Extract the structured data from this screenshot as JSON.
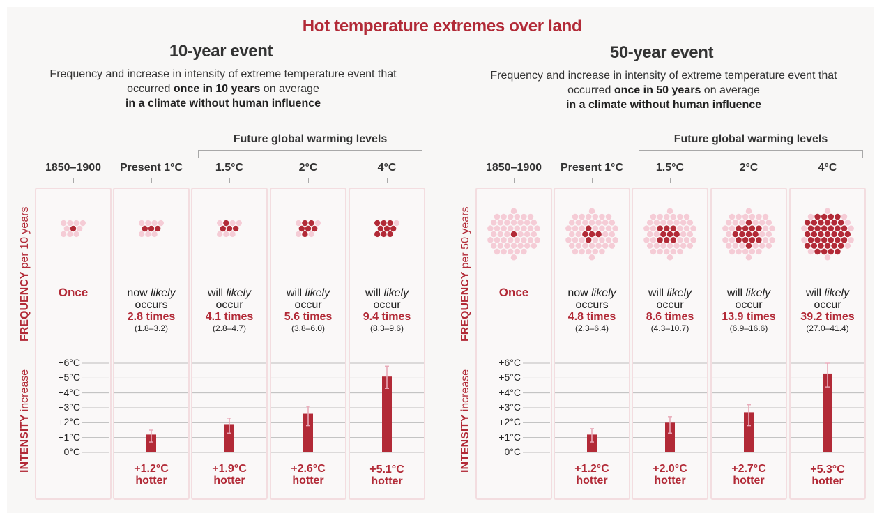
{
  "colors": {
    "accent": "#b22a37",
    "dot_light": "#f5ccd6",
    "dot_dark": "#b22a37",
    "errorbar": "#e8a9b8",
    "grid": "#bdbdbd"
  },
  "title": "Hot temperature extremes over land",
  "chart_data": [
    {
      "type": "bar",
      "title": "10-year event",
      "subtitle_parts": [
        "Frequency and increase in intensity of extreme temperature event that occurred ",
        "once in 10 years",
        " on average ",
        "in a climate without human influence"
      ],
      "group_label": "Future global warming levels",
      "categories": [
        "1850–1900",
        "Present 1°C",
        "1.5°C",
        "2°C",
        "4°C"
      ],
      "frequency_label": "FREQUENCY",
      "frequency_unit": "per 10 years",
      "frequency_total_dots": 10,
      "frequency": [
        {
          "value": 1,
          "range": null,
          "lead": "Once",
          "text_label": "Once"
        },
        {
          "value": 2.8,
          "range": [
            1.8,
            3.2
          ],
          "lead": "now",
          "verb": "occurs",
          "text_label": "2.8 times",
          "range_label": "(1.8–3.2)"
        },
        {
          "value": 4.1,
          "range": [
            2.8,
            4.7
          ],
          "lead": "will",
          "verb": "occur",
          "text_label": "4.1 times",
          "range_label": "(2.8–4.7)"
        },
        {
          "value": 5.6,
          "range": [
            3.8,
            6.0
          ],
          "lead": "will",
          "verb": "occur",
          "text_label": "5.6 times",
          "range_label": "(3.8–6.0)"
        },
        {
          "value": 9.4,
          "range": [
            8.3,
            9.6
          ],
          "lead": "will",
          "verb": "occur",
          "text_label": "9.4 times",
          "range_label": "(8.3–9.6)"
        }
      ],
      "likely_word": "likely",
      "intensity_label": "INTENSITY",
      "intensity_unit": "increase",
      "ylim": [
        0,
        6
      ],
      "yticks": [
        "0°C",
        "+1°C",
        "+2°C",
        "+3°C",
        "+4°C",
        "+5°C",
        "+6°C"
      ],
      "intensity": [
        null,
        {
          "value": 1.2,
          "low": 0.7,
          "high": 1.5,
          "label": "+1.2°C"
        },
        {
          "value": 1.9,
          "low": 1.3,
          "high": 2.3,
          "label": "+1.9°C"
        },
        {
          "value": 2.6,
          "low": 1.8,
          "high": 3.1,
          "label": "+2.6°C"
        },
        {
          "value": 5.1,
          "low": 4.3,
          "high": 5.8,
          "label": "+5.1°C"
        }
      ],
      "hotter_word": "hotter"
    },
    {
      "type": "bar",
      "title": "50-year event",
      "subtitle_parts": [
        "Frequency and increase in intensity of extreme temperature event that occurred ",
        "once in 50 years",
        " on average ",
        "in a climate without human influence"
      ],
      "group_label": "Future global warming levels",
      "categories": [
        "1850–1900",
        "Present 1°C",
        "1.5°C",
        "2°C",
        "4°C"
      ],
      "frequency_label": "FREQUENCY",
      "frequency_unit": "per 50 years",
      "frequency_total_dots": 50,
      "frequency": [
        {
          "value": 1,
          "range": null,
          "lead": "Once",
          "text_label": "Once"
        },
        {
          "value": 4.8,
          "range": [
            2.3,
            6.4
          ],
          "lead": "now",
          "verb": "occurs",
          "text_label": "4.8 times",
          "range_label": "(2.3–6.4)"
        },
        {
          "value": 8.6,
          "range": [
            4.3,
            10.7
          ],
          "lead": "will",
          "verb": "occur",
          "text_label": "8.6 times",
          "range_label": "(4.3–10.7)"
        },
        {
          "value": 13.9,
          "range": [
            6.9,
            16.6
          ],
          "lead": "will",
          "verb": "occur",
          "text_label": "13.9 times",
          "range_label": "(6.9–16.6)"
        },
        {
          "value": 39.2,
          "range": [
            27.0,
            41.4
          ],
          "lead": "will",
          "verb": "occur",
          "text_label": "39.2 times",
          "range_label": "(27.0–41.4)"
        }
      ],
      "likely_word": "likely",
      "intensity_label": "INTENSITY",
      "intensity_unit": "increase",
      "ylim": [
        0,
        6
      ],
      "yticks": [
        "0°C",
        "+1°C",
        "+2°C",
        "+3°C",
        "+4°C",
        "+5°C",
        "+6°C"
      ],
      "intensity": [
        null,
        {
          "value": 1.2,
          "low": 0.7,
          "high": 1.6,
          "label": "+1.2°C"
        },
        {
          "value": 2.0,
          "low": 1.3,
          "high": 2.4,
          "label": "+2.0°C"
        },
        {
          "value": 2.7,
          "low": 1.8,
          "high": 3.2,
          "label": "+2.7°C"
        },
        {
          "value": 5.3,
          "low": 4.4,
          "high": 6.0,
          "label": "+5.3°C"
        }
      ],
      "hotter_word": "hotter"
    }
  ]
}
